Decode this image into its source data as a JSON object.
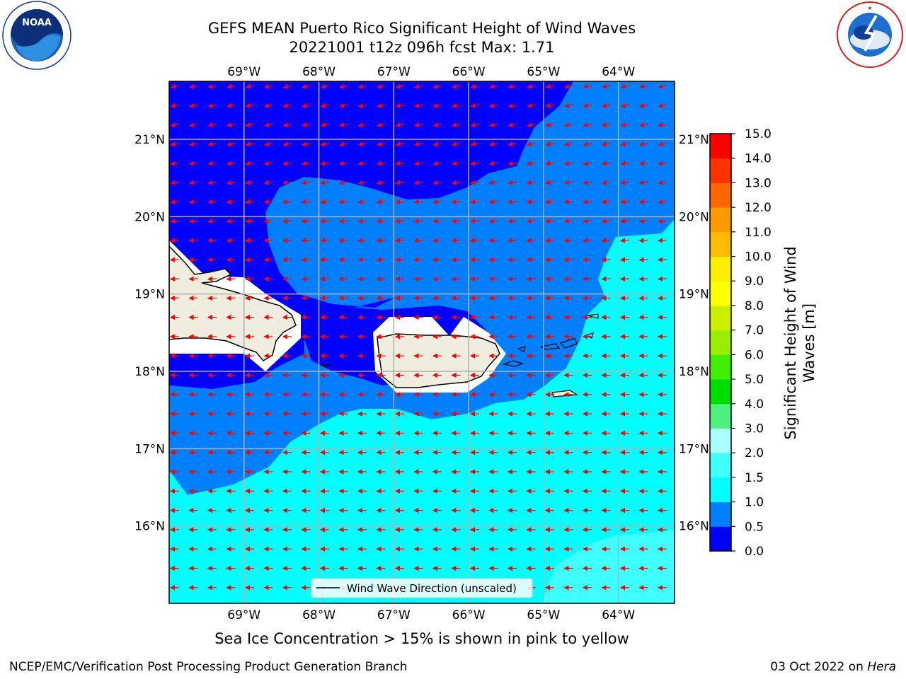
{
  "header": {
    "title": "GEFS MEAN Puerto Rico Significant Height of Wind Waves",
    "subtitle": "20221001 t12z 096h fcst   Max: 1.71"
  },
  "logos": {
    "left": {
      "name": "noaa-logo",
      "text": "NOAA",
      "ring_text": "NATIONAL OCEANIC AND ATMOSPHERIC ADMINISTRATION · U.S. DEPARTMENT OF COMMERCE"
    },
    "right": {
      "name": "nws-logo",
      "ring_text": "NATIONAL WEATHER SERVICE"
    }
  },
  "map": {
    "lon_ticks": [
      "69°W",
      "68°W",
      "67°W",
      "66°W",
      "65°W",
      "64°W"
    ],
    "lat_ticks": [
      "21°N",
      "20°N",
      "19°N",
      "18°N",
      "17°N",
      "16°N"
    ],
    "lon_values": [
      -69,
      -68,
      -67,
      -66,
      -65,
      -64
    ],
    "lat_values": [
      21,
      20,
      19,
      18,
      17,
      16
    ],
    "extent": {
      "lon_min": -70,
      "lon_max": -63.25,
      "lat_min": 15,
      "lat_max": 21.75
    },
    "legend_label": "Wind Wave Direction (unscaled)",
    "vector_direction": "westward",
    "colors": {
      "land": "#efedde",
      "vector": "#ff0000",
      "grid": "#b0b0b0",
      "coast": "#000000"
    }
  },
  "colorbar": {
    "label": "Significant Height of Wind Waves [m]",
    "label_line1": "Significant Height of Wind",
    "label_line2": "Waves [m]",
    "levels": [
      "0.0",
      "0.5",
      "1.0",
      "1.5",
      "2.0",
      "3.0",
      "4.0",
      "5.0",
      "6.0",
      "7.0",
      "8.0",
      "9.0",
      "10.0",
      "11.0",
      "12.0",
      "13.0",
      "14.0",
      "15.0"
    ],
    "colors": [
      "#0000ff",
      "#0080ff",
      "#00ffff",
      "#40ffff",
      "#aaffff",
      "#50f080",
      "#00dd00",
      "#40ee00",
      "#99ee00",
      "#ccee00",
      "#ffff00",
      "#ffee00",
      "#ffbb00",
      "#ff9900",
      "#ff6600",
      "#ff3300",
      "#ff0000"
    ]
  },
  "caption": "Sea Ice Concentration > 15% is shown in pink to yellow",
  "footer": {
    "left": "NCEP/EMC/Verification Post Processing Product Generation Branch",
    "right_prefix": "03 Oct 2022 on ",
    "right_host": "Hera"
  }
}
